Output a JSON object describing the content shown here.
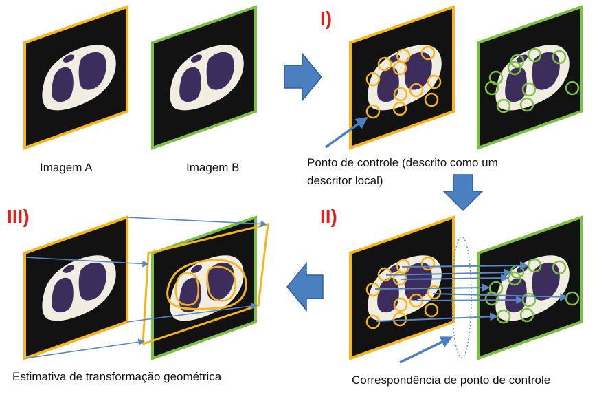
{
  "labels": {
    "image_a": "Imagem A",
    "image_b": "Imagem B",
    "control_point_line1": "Ponto de controle (descrito como um",
    "control_point_line2": "descritor local)",
    "correspondence": "Correspondência de ponto de controle",
    "transform_estimate": "Estimativa de transformação geométrica"
  },
  "steps": {
    "step1": "I)",
    "step2": "II)",
    "step3": "III)"
  },
  "colors": {
    "frame_a": "#f6b51c",
    "frame_b": "#7cc043",
    "panel_bg": "#121212",
    "body": "#f1ede0",
    "organ": "#3c2d5c",
    "flow_arrow": "#4a7fc0",
    "step_label": "#e0201b",
    "connector": "#5b86c4",
    "circle_a": "#f6b51c",
    "circle_b": "#7cc043"
  }
}
